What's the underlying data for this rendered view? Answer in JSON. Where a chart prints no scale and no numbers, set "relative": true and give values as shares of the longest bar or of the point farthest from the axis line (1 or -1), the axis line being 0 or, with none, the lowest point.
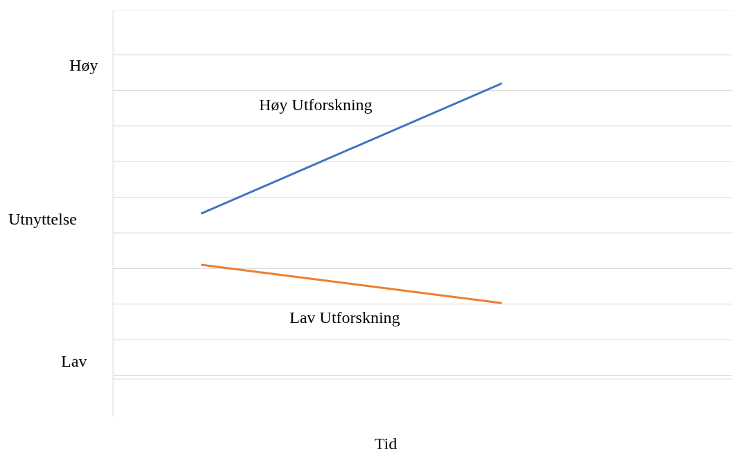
{
  "chart_data": {
    "type": "line",
    "relative": true,
    "xlabel": "Tid",
    "ylabel": "Utnyttelse",
    "annotations": [
      "Høy",
      "Lav"
    ],
    "categories": [
      null,
      null
    ],
    "grid": "y",
    "series": [
      {
        "name": "Høy Utforskning",
        "color": "#4472c4",
        "values": [
          0.56,
          1
        ]
      },
      {
        "name": "Lav Utforskning",
        "color": "#ed7d31",
        "values": [
          0.387,
          0.257
        ]
      }
    ]
  }
}
